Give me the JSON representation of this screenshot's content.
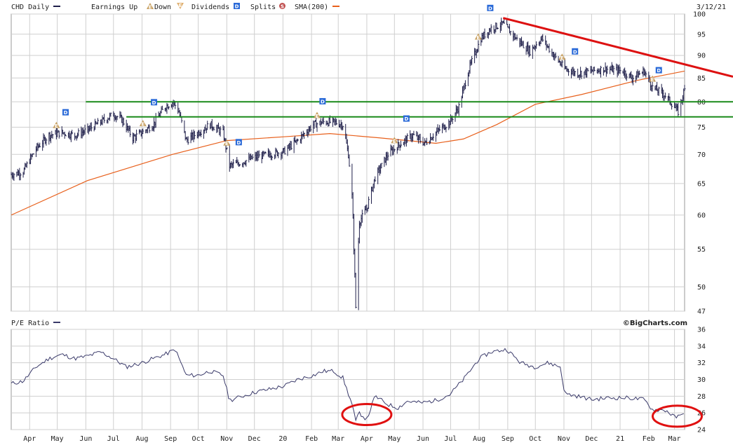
{
  "header": {
    "symbol_label": "CHD Daily",
    "earnings_label": "Earnings Up",
    "down_label": "Down",
    "dividends_label": "Dividends",
    "splits_label": "Splits",
    "sma_label": "SMA(200)",
    "date": "3/12/21",
    "earnings_up_glyph": "E",
    "earnings_down_glyph": "E",
    "dividend_glyph": "D",
    "split_glyph": "S"
  },
  "pe_panel": {
    "label": "P/E Ratio",
    "credit": "©BigCharts.com"
  },
  "colors": {
    "price": "#1f1f4a",
    "sma": "#e8601c",
    "pe": "#3a3a6a",
    "trendline": "#dd1111",
    "support": "#1a8a1a",
    "circle": "#e01010",
    "earnings_marker": "#c8a060",
    "dividend_marker": "#2a6ad8",
    "grid": "#cfcfcf"
  },
  "chart_data": [
    {
      "type": "line",
      "subtype": "ohlc-daily",
      "title": "CHD Daily",
      "y_ticks": [
        100,
        95,
        90,
        85,
        80,
        75,
        70,
        65,
        60,
        55,
        50,
        47
      ],
      "ylim": [
        47,
        100
      ],
      "y_scale": "log",
      "x_ticks": [
        "Apr",
        "May",
        "Jun",
        "Jul",
        "Aug",
        "Sep",
        "Oct",
        "Nov",
        "Dec",
        "20",
        "Feb",
        "Mar",
        "Apr",
        "May",
        "Jun",
        "Jul",
        "Aug",
        "Sep",
        "Oct",
        "Nov",
        "Dec",
        "21",
        "Feb",
        "Mar"
      ],
      "x_range": [
        "2019-03-12",
        "2021-03-12"
      ],
      "grid": true,
      "series": [
        {
          "name": "CHD Daily",
          "points": [
            [
              "2019-03-12",
              66.5
            ],
            [
              "2019-03-25",
              67
            ],
            [
              "2019-04-08",
              71
            ],
            [
              "2019-04-22",
              73.5
            ],
            [
              "2019-05-06",
              74
            ],
            [
              "2019-05-20",
              73.5
            ],
            [
              "2019-06-03",
              74.5
            ],
            [
              "2019-06-17",
              76
            ],
            [
              "2019-07-01",
              77.5
            ],
            [
              "2019-07-10",
              76.5
            ],
            [
              "2019-07-22",
              73
            ],
            [
              "2019-08-01",
              74
            ],
            [
              "2019-08-13",
              75.5
            ],
            [
              "2019-08-26",
              79
            ],
            [
              "2019-09-04",
              80
            ],
            [
              "2019-09-10",
              78
            ],
            [
              "2019-09-18",
              72.5
            ],
            [
              "2019-10-01",
              74
            ],
            [
              "2019-10-14",
              75.5
            ],
            [
              "2019-10-28",
              74
            ],
            [
              "2019-11-04",
              68
            ],
            [
              "2019-11-15",
              68.5
            ],
            [
              "2019-12-02",
              69.5
            ],
            [
              "2019-12-16",
              70
            ],
            [
              "2020-01-02",
              70.5
            ],
            [
              "2020-01-17",
              72.5
            ],
            [
              "2020-02-03",
              75.5
            ],
            [
              "2020-02-14",
              76
            ],
            [
              "2020-02-25",
              76
            ],
            [
              "2020-03-06",
              75.5
            ],
            [
              "2020-03-12",
              70
            ],
            [
              "2020-03-16",
              63
            ],
            [
              "2020-03-20",
              47.5
            ],
            [
              "2020-03-24",
              59
            ],
            [
              "2020-04-01",
              61
            ],
            [
              "2020-04-10",
              66
            ],
            [
              "2020-04-24",
              70
            ],
            [
              "2020-05-08",
              72
            ],
            [
              "2020-05-21",
              73.5
            ],
            [
              "2020-06-03",
              72
            ],
            [
              "2020-06-15",
              74
            ],
            [
              "2020-06-30",
              76
            ],
            [
              "2020-07-10",
              79
            ],
            [
              "2020-07-21",
              87
            ],
            [
              "2020-08-03",
              94
            ],
            [
              "2020-08-14",
              96.5
            ],
            [
              "2020-08-27",
              97.5
            ],
            [
              "2020-09-10",
              94
            ],
            [
              "2020-09-25",
              91
            ],
            [
              "2020-10-08",
              94
            ],
            [
              "2020-10-21",
              90
            ],
            [
              "2020-11-02",
              87
            ],
            [
              "2020-11-16",
              86
            ],
            [
              "2020-12-01",
              86.5
            ],
            [
              "2020-12-15",
              87
            ],
            [
              "2021-01-04",
              86.5
            ],
            [
              "2021-01-14",
              85
            ],
            [
              "2021-01-27",
              86.5
            ],
            [
              "2021-02-05",
              83
            ],
            [
              "2021-02-18",
              81.5
            ],
            [
              "2021-03-01",
              79
            ],
            [
              "2021-03-05",
              78
            ],
            [
              "2021-03-12",
              82.5
            ]
          ]
        },
        {
          "name": "SMA(200)",
          "points": [
            [
              "2019-03-12",
              60
            ],
            [
              "2019-06-03",
              65.5
            ],
            [
              "2019-09-03",
              70
            ],
            [
              "2019-11-01",
              72.5
            ],
            [
              "2020-01-02",
              73.2
            ],
            [
              "2020-02-21",
              73.8
            ],
            [
              "2020-04-15",
              73
            ],
            [
              "2020-06-15",
              72
            ],
            [
              "2020-07-15",
              72.8
            ],
            [
              "2020-08-20",
              75.5
            ],
            [
              "2020-10-01",
              79.5
            ],
            [
              "2020-11-20",
              81.5
            ],
            [
              "2021-01-20",
              84.5
            ],
            [
              "2021-03-12",
              86.5
            ]
          ]
        }
      ],
      "annotations": {
        "trendline": [
          [
            "2020-08-27",
            99
          ],
          [
            "2021-03-12",
            88
          ]
        ],
        "support_lines": [
          80,
          77
        ]
      },
      "events": {
        "earnings": [
          "2019-04-30",
          "2019-08-02",
          "2019-11-01",
          "2020-02-07",
          "2020-05-01",
          "2020-07-31",
          "2020-10-30",
          "2021-02-05"
        ],
        "dividends": [
          "2019-05-10",
          "2019-08-14",
          "2019-11-14",
          "2020-02-13",
          "2020-05-14",
          "2020-08-13",
          "2020-11-13",
          "2021-02-12"
        ]
      }
    },
    {
      "type": "line",
      "title": "P/E Ratio",
      "y_ticks": [
        36,
        34,
        32,
        30,
        28,
        26,
        24
      ],
      "ylim": [
        24,
        36
      ],
      "x_range": [
        "2019-03-12",
        "2021-03-12"
      ],
      "grid": true,
      "series": [
        {
          "name": "P/E Ratio",
          "points": [
            [
              "2019-03-12",
              29.5
            ],
            [
              "2019-03-25",
              29.8
            ],
            [
              "2019-04-08",
              31.5
            ],
            [
              "2019-04-22",
              32.5
            ],
            [
              "2019-05-06",
              33
            ],
            [
              "2019-05-20",
              32.5
            ],
            [
              "2019-06-03",
              32.8
            ],
            [
              "2019-06-17",
              33.3
            ],
            [
              "2019-07-01",
              32.5
            ],
            [
              "2019-07-15",
              31.5
            ],
            [
              "2019-08-01",
              32
            ],
            [
              "2019-08-13",
              32.5
            ],
            [
              "2019-08-26",
              33
            ],
            [
              "2019-09-06",
              33.6
            ],
            [
              "2019-09-18",
              30.5
            ],
            [
              "2019-10-01",
              30.5
            ],
            [
              "2019-10-14",
              31
            ],
            [
              "2019-10-28",
              30.5
            ],
            [
              "2019-11-04",
              27.5
            ],
            [
              "2019-11-18",
              28
            ],
            [
              "2019-12-02",
              28.5
            ],
            [
              "2019-12-16",
              28.8
            ],
            [
              "2020-01-02",
              29.2
            ],
            [
              "2020-01-17",
              30
            ],
            [
              "2020-02-03",
              30.5
            ],
            [
              "2020-02-14",
              31
            ],
            [
              "2020-02-25",
              31
            ],
            [
              "2020-03-06",
              30.2
            ],
            [
              "2020-03-16",
              27
            ],
            [
              "2020-03-20",
              25
            ],
            [
              "2020-03-24",
              26
            ],
            [
              "2020-04-01",
              25.2
            ],
            [
              "2020-04-10",
              28
            ],
            [
              "2020-04-24",
              27
            ],
            [
              "2020-05-05",
              26.6
            ],
            [
              "2020-05-15",
              27.4
            ],
            [
              "2020-05-30",
              27.2
            ],
            [
              "2020-06-15",
              27.5
            ],
            [
              "2020-06-30",
              28.2
            ],
            [
              "2020-07-15",
              30
            ],
            [
              "2020-08-01",
              32.5
            ],
            [
              "2020-08-14",
              33.3
            ],
            [
              "2020-08-31",
              33.6
            ],
            [
              "2020-09-15",
              32
            ],
            [
              "2020-09-30",
              31.5
            ],
            [
              "2020-10-15",
              32
            ],
            [
              "2020-10-28",
              31.5
            ],
            [
              "2020-11-02",
              28.3
            ],
            [
              "2020-11-16",
              28
            ],
            [
              "2020-12-01",
              27.6
            ],
            [
              "2020-12-20",
              27.8
            ],
            [
              "2021-01-10",
              27.8
            ],
            [
              "2021-01-27",
              27.6
            ],
            [
              "2021-02-05",
              26.4
            ],
            [
              "2021-02-20",
              26.3
            ],
            [
              "2021-03-01",
              25.5
            ],
            [
              "2021-03-08",
              25.6
            ],
            [
              "2021-03-12",
              26.3
            ]
          ]
        }
      ],
      "annotations": {
        "circles": [
          [
            "2020-04-01",
            25.8
          ],
          [
            "2021-03-04",
            25.6
          ]
        ]
      }
    }
  ]
}
